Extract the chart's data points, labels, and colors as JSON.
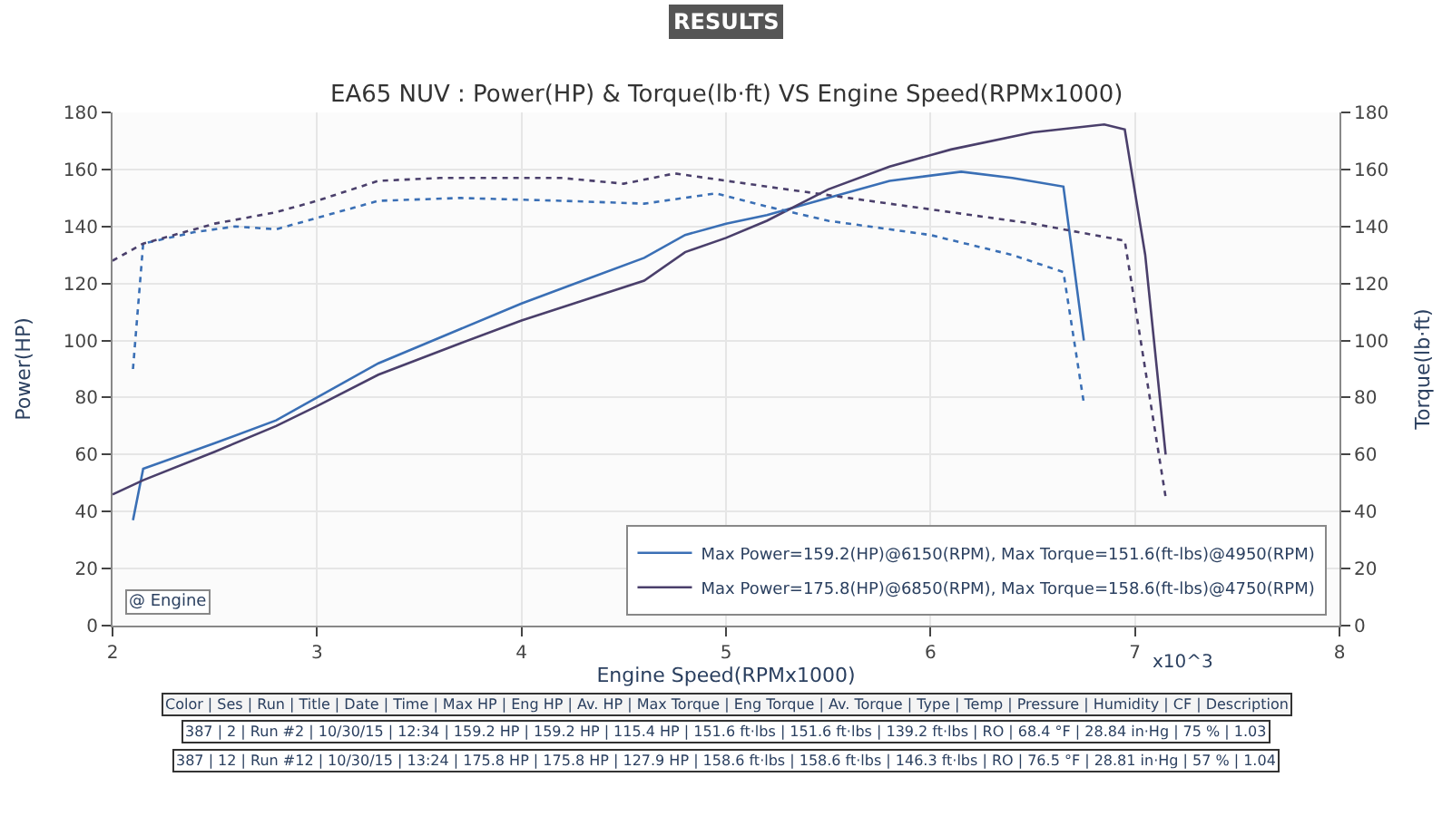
{
  "chart_data": {
    "type": "line",
    "title": "EA65 NUV : Power(HP) & Torque(lb·ft) VS Engine Speed(RPMx1000)",
    "subtitle": "RESULTS",
    "xlabel": "Engine Speed(RPMx1000)",
    "ylabel": "Power(HP)",
    "y2label": "Torque(lb·ft)",
    "xlim": [
      2,
      8
    ],
    "xticks": [
      2,
      3,
      4,
      5,
      6,
      7,
      8
    ],
    "ylim": [
      0,
      180
    ],
    "yticks": [
      0,
      20,
      40,
      60,
      80,
      100,
      120,
      140,
      160,
      180
    ],
    "y2lim": [
      0,
      180
    ],
    "y2ticks": [
      0,
      20,
      40,
      60,
      80,
      100,
      120,
      140,
      160,
      180
    ],
    "grid": true,
    "legend": "bottom right",
    "marker": "none",
    "series": [
      {
        "name": "Max Power=159.2(HP)@6150(RPM), Max Torque=151.6(ft-lbs)@4950(RPM)",
        "color": "#3a6fb5",
        "line_style": "solid",
        "x": [
          2.1,
          2.15,
          2.5,
          2.8,
          3.0,
          3.3,
          3.7,
          4.0,
          4.3,
          4.6,
          4.8,
          5.0,
          5.2,
          5.5,
          5.8,
          6.15,
          6.4,
          6.65,
          6.75
        ],
        "values": [
          37,
          55,
          64,
          72,
          80,
          92,
          104,
          113,
          121,
          129,
          137,
          141,
          144,
          150,
          156,
          159.2,
          157,
          154,
          100
        ]
      },
      {
        "name": "Max Power=175.8(HP)@6850(RPM), Max Torque=158.6(ft-lbs)@4750(RPM)",
        "color": "#4a3f6b",
        "line_style": "solid",
        "x": [
          2.0,
          2.15,
          2.5,
          2.8,
          3.0,
          3.3,
          3.7,
          4.0,
          4.3,
          4.6,
          4.8,
          5.0,
          5.2,
          5.5,
          5.8,
          6.1,
          6.5,
          6.85,
          6.95,
          7.05,
          7.15
        ],
        "values": [
          46,
          51,
          61,
          70,
          77,
          88,
          99,
          107,
          114,
          121,
          131,
          136,
          142,
          153,
          161,
          167,
          173,
          175.8,
          174,
          130,
          60
        ]
      },
      {
        "color": "#3a6fb5",
        "line_style": "dotted",
        "axis": "y2",
        "x": [
          2.1,
          2.15,
          2.4,
          2.6,
          2.8,
          3.0,
          3.3,
          3.7,
          4.2,
          4.6,
          4.95,
          5.2,
          5.5,
          6.0,
          6.4,
          6.65,
          6.75
        ],
        "values": [
          90,
          134,
          138,
          140,
          139,
          143,
          149,
          150,
          149,
          148,
          151.6,
          147,
          142,
          137,
          130,
          124,
          78
        ]
      },
      {
        "color": "#4a3f6b",
        "line_style": "dotted",
        "axis": "y2",
        "x": [
          2.0,
          2.15,
          2.5,
          2.8,
          3.0,
          3.3,
          3.6,
          4.2,
          4.5,
          4.75,
          5.2,
          5.6,
          6.0,
          6.5,
          6.95,
          7.15
        ],
        "values": [
          128,
          134,
          141,
          145,
          149,
          156,
          157,
          157,
          155,
          158.6,
          154,
          150,
          146,
          141,
          135,
          45
        ]
      }
    ],
    "annotations": [
      "@ Engine",
      "x10^3",
      "Color | Ses | Run | Title | Date | Time | Max HP | Eng HP | Av. HP | Max Torque | Eng Torque | Av. Torque | Type | Temp | Pressure | Humidity | CF | Description",
      "387 | 2 | Run #2 | 10/30/15 | 12:34 | 159.2 HP | 159.2 HP | 115.4 HP | 151.6 ft·lbs | 151.6 ft·lbs | 139.2 ft·lbs | RO | 68.4 °F | 28.84 in·Hg | 75 % | 1.03",
      "387 | 12 | Run #12 | 10/30/15 | 13:24 | 175.8 HP | 175.8 HP | 127.9 HP | 158.6 ft·lbs | 158.6 ft·lbs | 146.3 ft·lbs | RO | 76.5 °F | 28.81 in·Hg | 57 % | 1.04"
    ]
  }
}
